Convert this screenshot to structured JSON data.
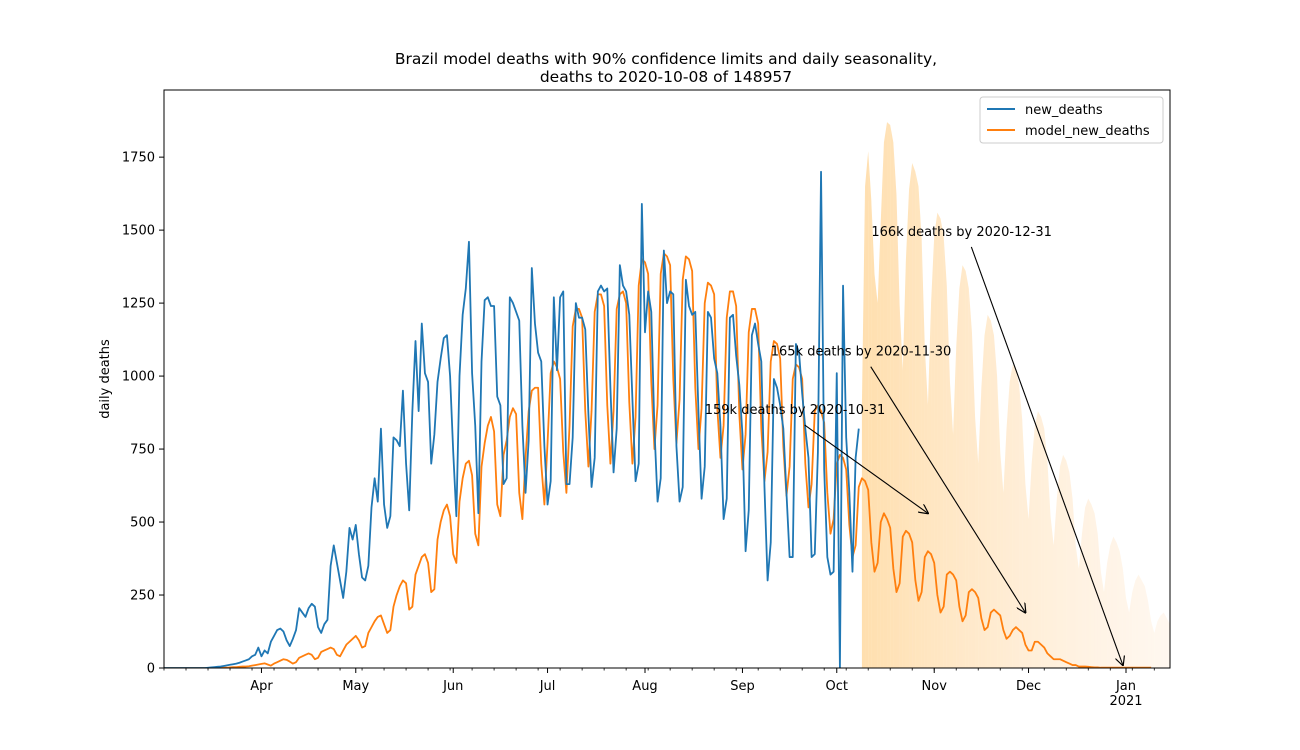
{
  "chart_data": {
    "type": "line",
    "title_line1": "Brazil model deaths with 90% confidence limits and daily seasonality,",
    "title_line2": "deaths to 2020-10-08 of 148957",
    "xlabel": "",
    "ylabel": "daily deaths",
    "x_range": [
      "2020-03-01",
      "2021-01-15"
    ],
    "ylim": [
      0,
      1980
    ],
    "y_ticks": [
      0,
      250,
      500,
      750,
      1000,
      1250,
      1500,
      1750
    ],
    "x_ticks": [
      {
        "date": "2020-04-01",
        "label": "Apr"
      },
      {
        "date": "2020-05-01",
        "label": "May"
      },
      {
        "date": "2020-06-01",
        "label": "Jun"
      },
      {
        "date": "2020-07-01",
        "label": "Jul"
      },
      {
        "date": "2020-08-01",
        "label": "Aug"
      },
      {
        "date": "2020-09-01",
        "label": "Sep"
      },
      {
        "date": "2020-10-01",
        "label": "Oct"
      },
      {
        "date": "2020-11-01",
        "label": "Nov"
      },
      {
        "date": "2020-12-01",
        "label": "Dec"
      },
      {
        "date": "2021-01-01",
        "label": "Jan",
        "sublabel": "2021"
      }
    ],
    "legend": {
      "placement": "top-right",
      "entries": [
        "new_deaths",
        "model_new_deaths"
      ]
    },
    "colors": {
      "new_deaths": "#1f77b4",
      "model_new_deaths": "#ff7f0e",
      "band": "#ffb84d"
    },
    "series": [
      {
        "name": "new_deaths",
        "start_date": "2020-03-01",
        "values": [
          0,
          0,
          0,
          0,
          0,
          0,
          0,
          0,
          0,
          0,
          0,
          0,
          0,
          0,
          1,
          2,
          3,
          4,
          5,
          7,
          9,
          11,
          13,
          15,
          18,
          22,
          26,
          30,
          40,
          45,
          70,
          40,
          60,
          50,
          90,
          110,
          130,
          135,
          125,
          95,
          75,
          100,
          130,
          205,
          190,
          175,
          205,
          220,
          210,
          140,
          120,
          150,
          165,
          350,
          420,
          360,
          300,
          240,
          330,
          480,
          440,
          490,
          390,
          310,
          300,
          350,
          550,
          650,
          570,
          820,
          560,
          480,
          520,
          790,
          780,
          760,
          950,
          700,
          540,
          880,
          1120,
          880,
          1180,
          1010,
          980,
          700,
          800,
          980,
          1060,
          1130,
          1140,
          1000,
          740,
          520,
          1000,
          1210,
          1300,
          1460,
          1010,
          830,
          530,
          1050,
          1260,
          1270,
          1240,
          1240,
          930,
          900,
          630,
          650,
          1270,
          1250,
          1220,
          1190,
          830,
          600,
          780,
          1370,
          1180,
          1080,
          1050,
          760,
          560,
          640,
          1270,
          1020,
          1270,
          1290,
          630,
          630,
          790,
          1250,
          1200,
          1200,
          1160,
          870,
          620,
          720,
          1290,
          1310,
          1290,
          1300,
          960,
          670,
          820,
          1380,
          1310,
          1290,
          1210,
          920,
          640,
          700,
          1590,
          1150,
          1290,
          1220,
          820,
          570,
          650,
          1430,
          1250,
          1290,
          1280,
          760,
          570,
          620,
          1330,
          1240,
          1210,
          1220,
          880,
          580,
          690,
          1220,
          1200,
          1060,
          1010,
          830,
          510,
          580,
          1200,
          1210,
          1070,
          970,
          800,
          400,
          540,
          1140,
          1180,
          1110,
          1050,
          620,
          300,
          430,
          990,
          960,
          900,
          820,
          600,
          380,
          380,
          1110,
          1080,
          940,
          820,
          720,
          380,
          390,
          740,
          1700,
          680,
          380,
          320,
          330,
          1010,
          0,
          1310,
          790,
          600,
          330,
          720,
          820
        ]
      },
      {
        "name": "model_new_deaths",
        "start_date": "2020-03-01",
        "values": [
          0,
          0,
          0,
          0,
          0,
          0,
          0,
          0,
          0,
          0,
          0,
          0,
          0,
          0,
          0,
          0,
          0,
          0,
          0,
          1,
          1,
          2,
          3,
          3,
          4,
          5,
          5,
          6,
          8,
          10,
          12,
          14,
          16,
          12,
          8,
          15,
          20,
          25,
          30,
          28,
          22,
          15,
          20,
          35,
          40,
          45,
          50,
          45,
          30,
          35,
          55,
          60,
          65,
          70,
          65,
          45,
          40,
          60,
          80,
          90,
          100,
          110,
          95,
          70,
          75,
          120,
          140,
          160,
          175,
          180,
          150,
          120,
          130,
          210,
          250,
          280,
          300,
          290,
          200,
          210,
          320,
          350,
          380,
          390,
          360,
          260,
          270,
          440,
          500,
          540,
          560,
          520,
          390,
          360,
          570,
          650,
          700,
          710,
          660,
          460,
          420,
          690,
          770,
          830,
          860,
          810,
          560,
          520,
          730,
          780,
          860,
          890,
          870,
          600,
          510,
          720,
          880,
          950,
          960,
          960,
          700,
          560,
          770,
          1010,
          1050,
          1030,
          990,
          740,
          600,
          830,
          1170,
          1230,
          1230,
          1200,
          880,
          690,
          880,
          1220,
          1280,
          1280,
          1240,
          900,
          700,
          880,
          1230,
          1280,
          1290,
          1250,
          910,
          700,
          860,
          1310,
          1400,
          1390,
          1350,
          980,
          750,
          900,
          1350,
          1420,
          1410,
          1380,
          990,
          770,
          920,
          1330,
          1410,
          1400,
          1360,
          960,
          750,
          890,
          1250,
          1320,
          1310,
          1280,
          890,
          720,
          830,
          1200,
          1290,
          1290,
          1240,
          870,
          680,
          800,
          1150,
          1230,
          1230,
          1180,
          820,
          640,
          740,
          1050,
          1120,
          1110,
          1060,
          760,
          590,
          690,
          990,
          1040,
          1030,
          990,
          700,
          550,
          630,
          880,
          900,
          880,
          840,
          600,
          460,
          510,
          700,
          730,
          720,
          680,
          490,
          380,
          420,
          620,
          650,
          640,
          610,
          430,
          330,
          360,
          500,
          530,
          510,
          480,
          340,
          260,
          290,
          450,
          470,
          460,
          430,
          300,
          230,
          260,
          380,
          400,
          390,
          360,
          250,
          190,
          210,
          320,
          330,
          320,
          300,
          210,
          160,
          180,
          260,
          270,
          260,
          240,
          170,
          130,
          140,
          190,
          200,
          190,
          180,
          130,
          100,
          110,
          130,
          140,
          130,
          120,
          80,
          60,
          60,
          90,
          90,
          80,
          70,
          50,
          40,
          30,
          30,
          30,
          25,
          20,
          15,
          10,
          10,
          5,
          5,
          5,
          4,
          3,
          2,
          2,
          1,
          1,
          1,
          1,
          1,
          1,
          1,
          1,
          1,
          1,
          1,
          1,
          1,
          1,
          1,
          1,
          1
        ]
      },
      {
        "name": "upper_90",
        "start_date": "2020-10-09",
        "values": [
          900,
          1650,
          1770,
          1600,
          1350,
          1250,
          1530,
          1800,
          1870,
          1860,
          1800,
          1620,
          1240,
          1020,
          1400,
          1640,
          1730,
          1700,
          1650,
          1470,
          1100,
          900,
          1250,
          1480,
          1560,
          1540,
          1480,
          1310,
          980,
          800,
          1100,
          1300,
          1380,
          1360,
          1300,
          1150,
          860,
          700,
          960,
          1140,
          1210,
          1190,
          1140,
          1000,
          740,
          600,
          820,
          980,
          1040,
          1020,
          970,
          850,
          630,
          510,
          700,
          830,
          880,
          860,
          820,
          710,
          520,
          420,
          580,
          690,
          730,
          710,
          670,
          580,
          420,
          340,
          460,
          550,
          580,
          560,
          530,
          460,
          330,
          260,
          360,
          420,
          450,
          430,
          400,
          340,
          240,
          190,
          260,
          300,
          320,
          300,
          280,
          230,
          160,
          120,
          160,
          180,
          190,
          170,
          150,
          120,
          80,
          60,
          70,
          80,
          70,
          60,
          50,
          40,
          30,
          20,
          15,
          10,
          8,
          6,
          5,
          4,
          3,
          2,
          2,
          1,
          1,
          1,
          1,
          1,
          1,
          1,
          1,
          1,
          1,
          1,
          1,
          1,
          1,
          1,
          1,
          1,
          1,
          1,
          1,
          1,
          1,
          1,
          1,
          1,
          1,
          1,
          1,
          1,
          1,
          1,
          1,
          1,
          1,
          1,
          1,
          1,
          1,
          1,
          1,
          1,
          1,
          1,
          1,
          1,
          1,
          1,
          1,
          1,
          1,
          1
        ]
      }
    ],
    "annotations": [
      {
        "text": "166k deaths by 2020-12-31",
        "text_date": "2020-10-12",
        "text_value": 1480,
        "arrow_date": "2020-12-31",
        "arrow_value": 10
      },
      {
        "text": "165k deaths by 2020-11-30",
        "text_date": "2020-09-10",
        "text_value": 1070,
        "arrow_date": "2020-11-30",
        "arrow_value": 190
      },
      {
        "text": "159k deaths by 2020-10-31",
        "text_date": "2020-08-20",
        "text_value": 870,
        "arrow_date": "2020-10-30",
        "arrow_value": 530
      }
    ]
  }
}
